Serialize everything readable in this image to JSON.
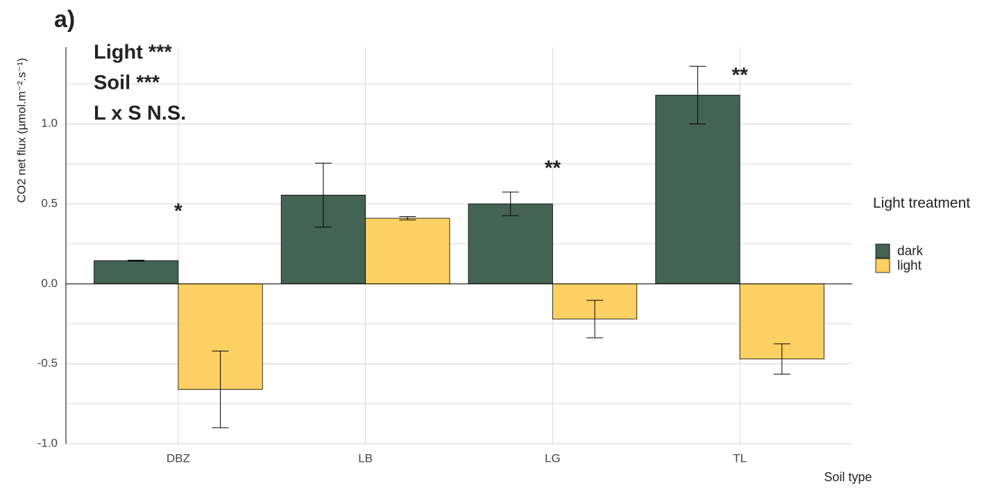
{
  "chart_data": {
    "type": "bar",
    "title": "a)",
    "annotations": [
      "Light ***",
      "Soil ***",
      "L x S N.S."
    ],
    "x_label": "Soil type",
    "y_label": "CO2 net flux (µmol.m⁻².s⁻¹)",
    "legend_title": "Light treatment",
    "categories": [
      "DBZ",
      "LB",
      "LG",
      "TL"
    ],
    "significance": [
      "*",
      null,
      "**",
      "**"
    ],
    "series": [
      {
        "name": "dark",
        "color": "#446355",
        "values": [
          0.145,
          0.555,
          0.5,
          1.18
        ],
        "errors": [
          0.003,
          0.2,
          0.074,
          0.18
        ]
      },
      {
        "name": "light",
        "color": "#fdd063",
        "values": [
          -0.66,
          0.41,
          -0.22,
          -0.47
        ],
        "errors": [
          0.24,
          0.01,
          0.117,
          0.095
        ]
      }
    ],
    "ylim": [
      -1.0,
      1.48
    ],
    "yticks": [
      {
        "value": -1.0,
        "label": "-1.0"
      },
      {
        "value": -0.5,
        "label": "-0.5"
      },
      {
        "value": 0,
        "label": "0.0"
      },
      {
        "value": 0.5,
        "label": "0.5"
      },
      {
        "value": 1.0,
        "label": "1.0"
      }
    ],
    "grid": true,
    "legend": "right"
  }
}
